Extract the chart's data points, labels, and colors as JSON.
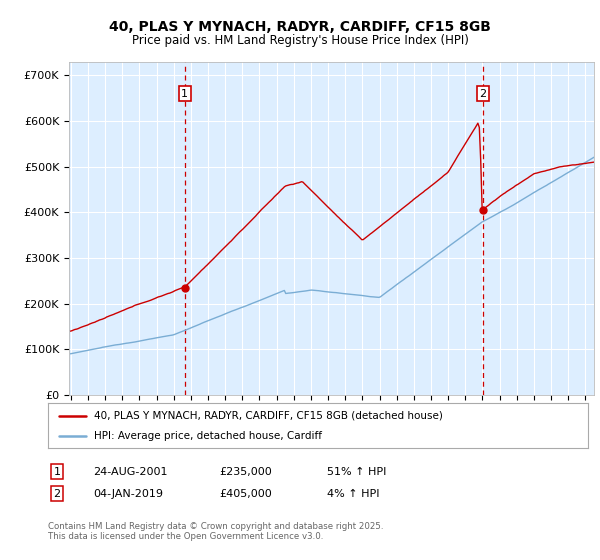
{
  "title": "40, PLAS Y MYNACH, RADYR, CARDIFF, CF15 8GB",
  "subtitle": "Price paid vs. HM Land Registry's House Price Index (HPI)",
  "ylabel_ticks": [
    "£0",
    "£100K",
    "£200K",
    "£300K",
    "£400K",
    "£500K",
    "£600K",
    "£700K"
  ],
  "ytick_vals": [
    0,
    100000,
    200000,
    300000,
    400000,
    500000,
    600000,
    700000
  ],
  "ylim": [
    0,
    730000
  ],
  "xlim_start": 1994.9,
  "xlim_end": 2025.5,
  "purchase1_date": 2001.65,
  "purchase1_price": 235000,
  "purchase1_label": "1",
  "purchase2_date": 2019.02,
  "purchase2_price": 405000,
  "purchase2_label": "2",
  "legend_line1": "40, PLAS Y MYNACH, RADYR, CARDIFF, CF15 8GB (detached house)",
  "legend_line2": "HPI: Average price, detached house, Cardiff",
  "note1_label": "1",
  "note1_date": "24-AUG-2001",
  "note1_price": "£235,000",
  "note1_hpi": "51% ↑ HPI",
  "note2_label": "2",
  "note2_date": "04-JAN-2019",
  "note2_price": "£405,000",
  "note2_hpi": "4% ↑ HPI",
  "footer": "Contains HM Land Registry data © Crown copyright and database right 2025.\nThis data is licensed under the Open Government Licence v3.0.",
  "red_color": "#cc0000",
  "blue_color": "#7aadd4",
  "bg_color": "#ddeeff",
  "grid_color": "#ffffff",
  "vline_color": "#cc0000"
}
